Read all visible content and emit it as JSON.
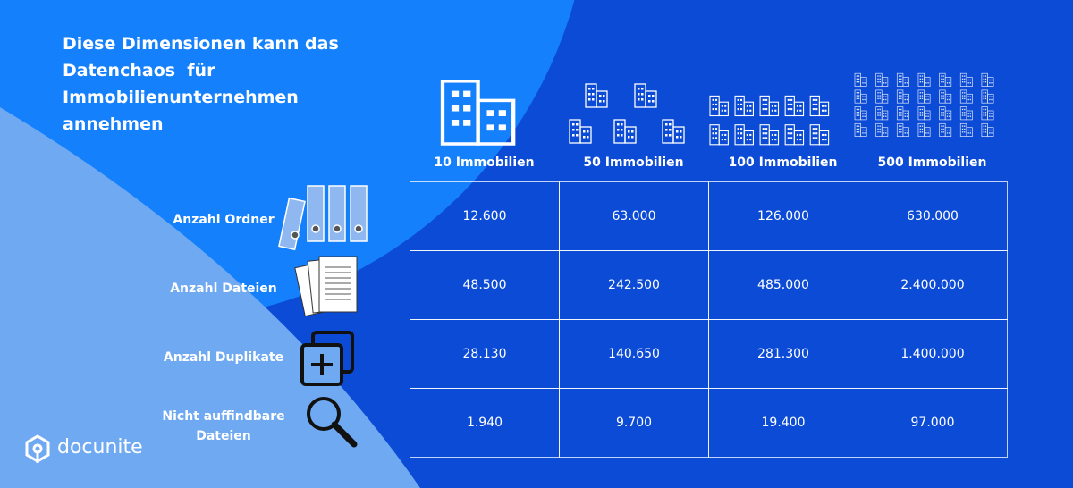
{
  "header": {
    "title_lines": [
      "Diese Dimensionen kann das",
      "Datenchaos  für",
      "Immobilienunternehmen",
      "annehmen"
    ]
  },
  "table": {
    "columns": [
      "10 Immobilien",
      "50 Immobilien",
      "100 Immobilien",
      "500 Immobilien"
    ],
    "rows": [
      {
        "label": "Anzahl Ordner",
        "cells": [
          "12.600",
          "63.000",
          "126.000",
          "630.000"
        ]
      },
      {
        "label": "Anzahl Dateien",
        "cells": [
          "48.500",
          "242.500",
          "485.000",
          "2.400.000"
        ]
      },
      {
        "label": "Anzahl Duplikate",
        "cells": [
          "28.130",
          "140.650",
          "281.300",
          "1.400.000"
        ]
      },
      {
        "label": "Nicht auffindbare Dateien",
        "cells": [
          "1.940",
          "9.700",
          "19.400",
          "97.000"
        ]
      }
    ]
  },
  "logo": {
    "text": "docunite"
  }
}
